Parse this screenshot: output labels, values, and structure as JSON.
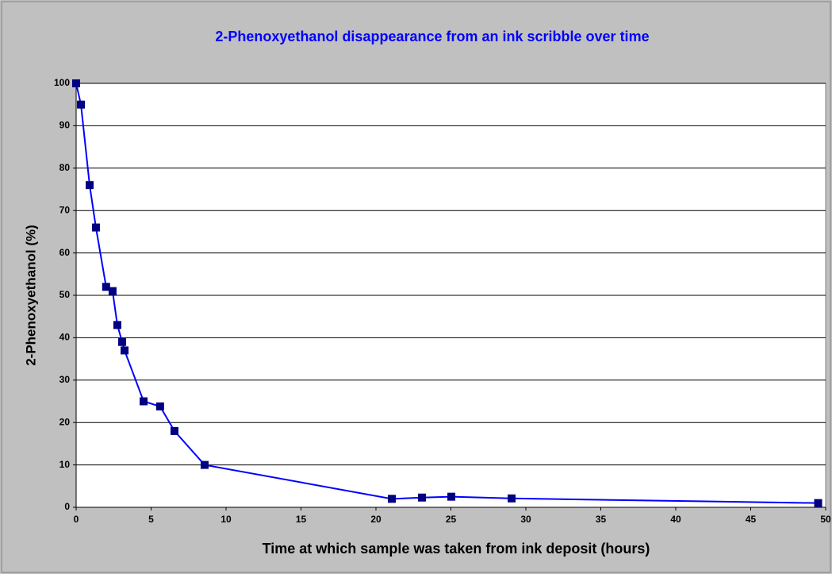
{
  "chart_data": {
    "type": "line",
    "title": "2-Phenoxyethanol disappearance from an ink scribble over time",
    "x_label": "Time at which sample was taken from ink deposit (hours)",
    "y_label": "2-Phenoxyethanol (%)",
    "x": [
      0,
      0.32,
      0.9,
      1.32,
      2.0,
      2.43,
      2.75,
      3.07,
      3.23,
      4.5,
      5.6,
      6.56,
      8.57,
      21.06,
      23.07,
      25.03,
      29.05,
      49.5
    ],
    "series": [
      {
        "name": "2-Phenoxyethanol",
        "color": "#0000ff",
        "marker_color": "#000080",
        "values": [
          100,
          95,
          76,
          66,
          52,
          51,
          43,
          39,
          37,
          25,
          23.8,
          18,
          10,
          2,
          2.3,
          2.5,
          2.1,
          1
        ]
      }
    ],
    "xlim": [
      0,
      50
    ],
    "xticks": [
      0,
      5,
      10,
      15,
      20,
      25,
      30,
      35,
      40,
      45,
      50
    ],
    "ylim": [
      0,
      100
    ],
    "yticks": [
      0,
      10,
      20,
      30,
      40,
      50,
      60,
      70,
      80,
      90,
      100
    ],
    "grid": true
  }
}
